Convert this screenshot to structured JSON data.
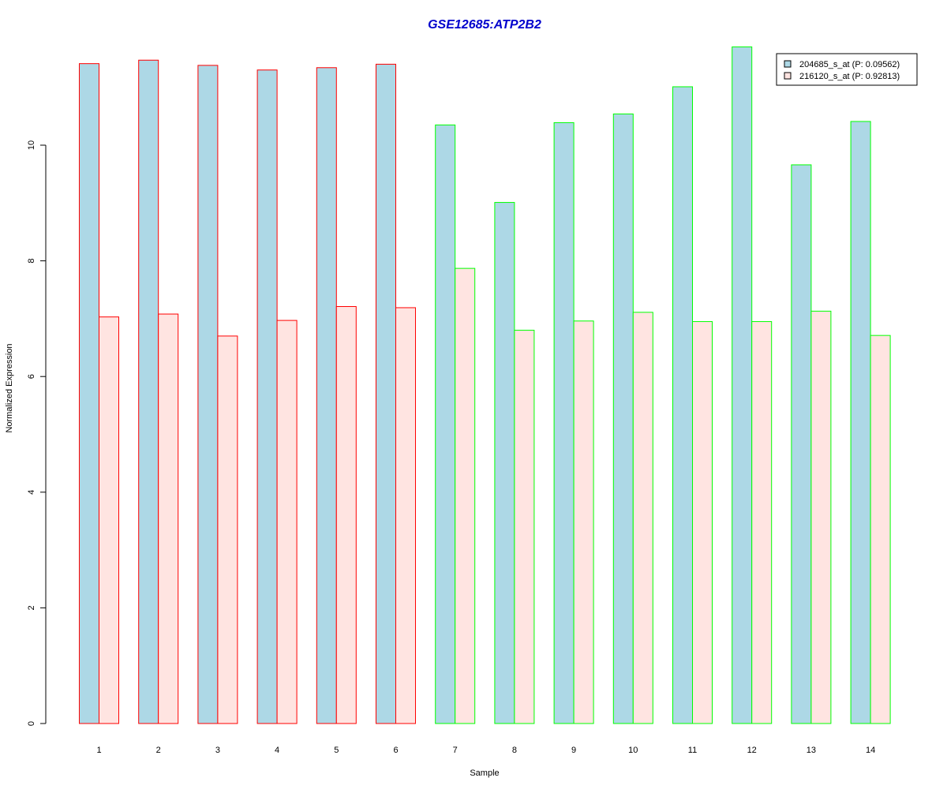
{
  "chart_data": {
    "type": "bar",
    "title": "GSE12685:ATP2B2",
    "xlabel": "Sample",
    "ylabel": "Normalized Expression",
    "ylim": [
      0,
      11.8
    ],
    "yticks": [
      0,
      2,
      4,
      6,
      8,
      10
    ],
    "categories": [
      "1",
      "2",
      "3",
      "4",
      "5",
      "6",
      "7",
      "8",
      "9",
      "10",
      "11",
      "12",
      "13",
      "14"
    ],
    "series": [
      {
        "name": "204685_s_at (P: 0.09562)",
        "fill": "#add8e6",
        "values": [
          11.41,
          11.47,
          11.38,
          11.3,
          11.34,
          11.4,
          10.35,
          9.01,
          10.39,
          10.54,
          11.01,
          11.7,
          9.66,
          10.41
        ]
      },
      {
        "name": "216120_s_at (P: 0.92813)",
        "fill": "#ffe4e1",
        "values": [
          7.03,
          7.08,
          6.7,
          6.97,
          7.21,
          7.19,
          7.87,
          6.8,
          6.96,
          7.11,
          6.95,
          6.95,
          7.13,
          6.71
        ]
      }
    ],
    "group_border_colors": [
      "#ff0000",
      "#ff0000",
      "#ff0000",
      "#ff0000",
      "#ff0000",
      "#ff0000",
      "#00ff00",
      "#00ff00",
      "#00ff00",
      "#00ff00",
      "#00ff00",
      "#00ff00",
      "#00ff00",
      "#00ff00"
    ],
    "title_color": "#0000cd",
    "legend_position": "top-right",
    "grid": false
  }
}
